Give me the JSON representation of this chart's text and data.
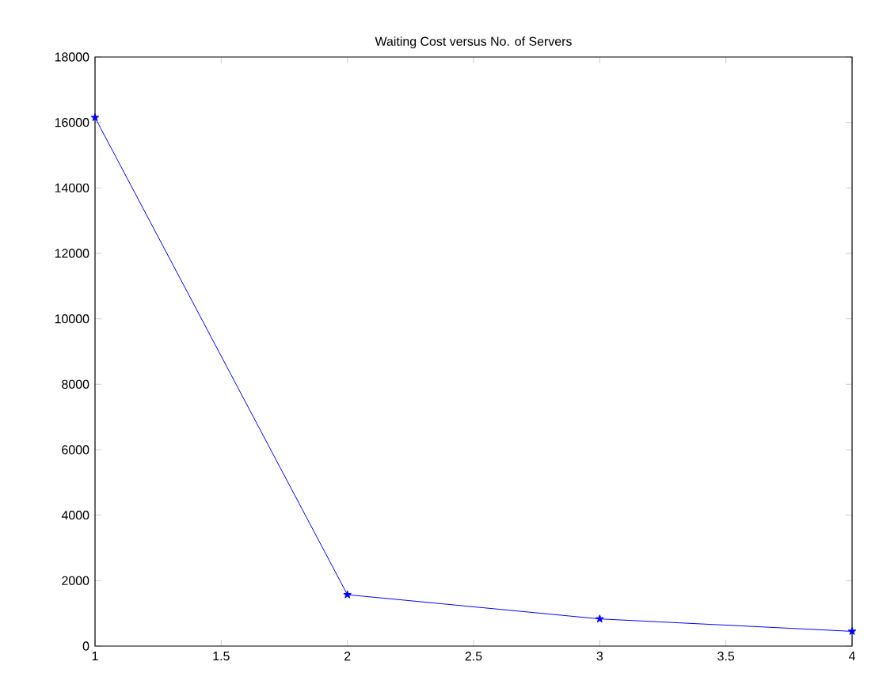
{
  "chart_data": {
    "type": "line",
    "title": "Waiting Cost versus No. of Servers",
    "x": [
      1,
      2,
      3,
      4
    ],
    "series": [
      {
        "color": "#0000ff",
        "values": [
          16150,
          1570,
          830,
          450
        ]
      }
    ],
    "xlim": [
      1,
      4
    ],
    "xticks": [
      1,
      1.5,
      2,
      2.5,
      3,
      3.5,
      4
    ],
    "ylim": [
      0,
      18000
    ],
    "yticks": [
      0,
      2000,
      4000,
      6000,
      8000,
      10000,
      12000,
      14000,
      16000,
      18000
    ],
    "marker": "star",
    "line_style": "solid"
  }
}
